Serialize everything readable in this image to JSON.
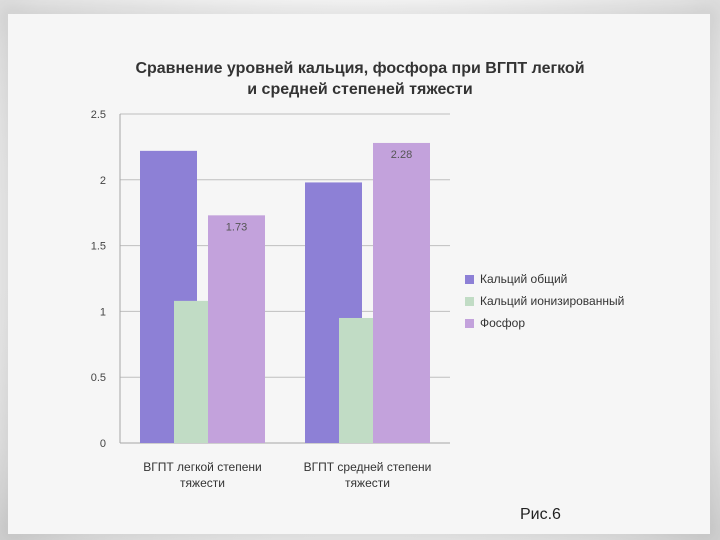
{
  "chart_data": {
    "type": "bar",
    "title_lines": [
      "Сравнение уровней кальция, фосфора при ВГПТ легкой",
      "и средней степеней тяжести"
    ],
    "categories": [
      [
        "ВГПТ легкой степени",
        "тяжести"
      ],
      [
        "ВГПТ средней степени",
        "тяжести"
      ]
    ],
    "series": [
      {
        "name": "Кальций общий",
        "values": [
          2.22,
          1.98
        ],
        "color": "#8d80d6",
        "labels": [
          "",
          ""
        ]
      },
      {
        "name": "Кальций ионизированный",
        "values": [
          1.08,
          0.95
        ],
        "color": "#c1dcc5",
        "labels": [
          "",
          ""
        ]
      },
      {
        "name": "Фосфор",
        "values": [
          1.73,
          2.28
        ],
        "color": "#c3a2dc",
        "labels": [
          "1.73",
          "2.28"
        ]
      }
    ],
    "yticks": [
      "0",
      "0.5",
      "1",
      "1.5",
      "2",
      "2.5"
    ],
    "ylim": [
      0,
      2.5
    ],
    "grid": true,
    "legend": "right"
  },
  "caption": "Рис.6"
}
